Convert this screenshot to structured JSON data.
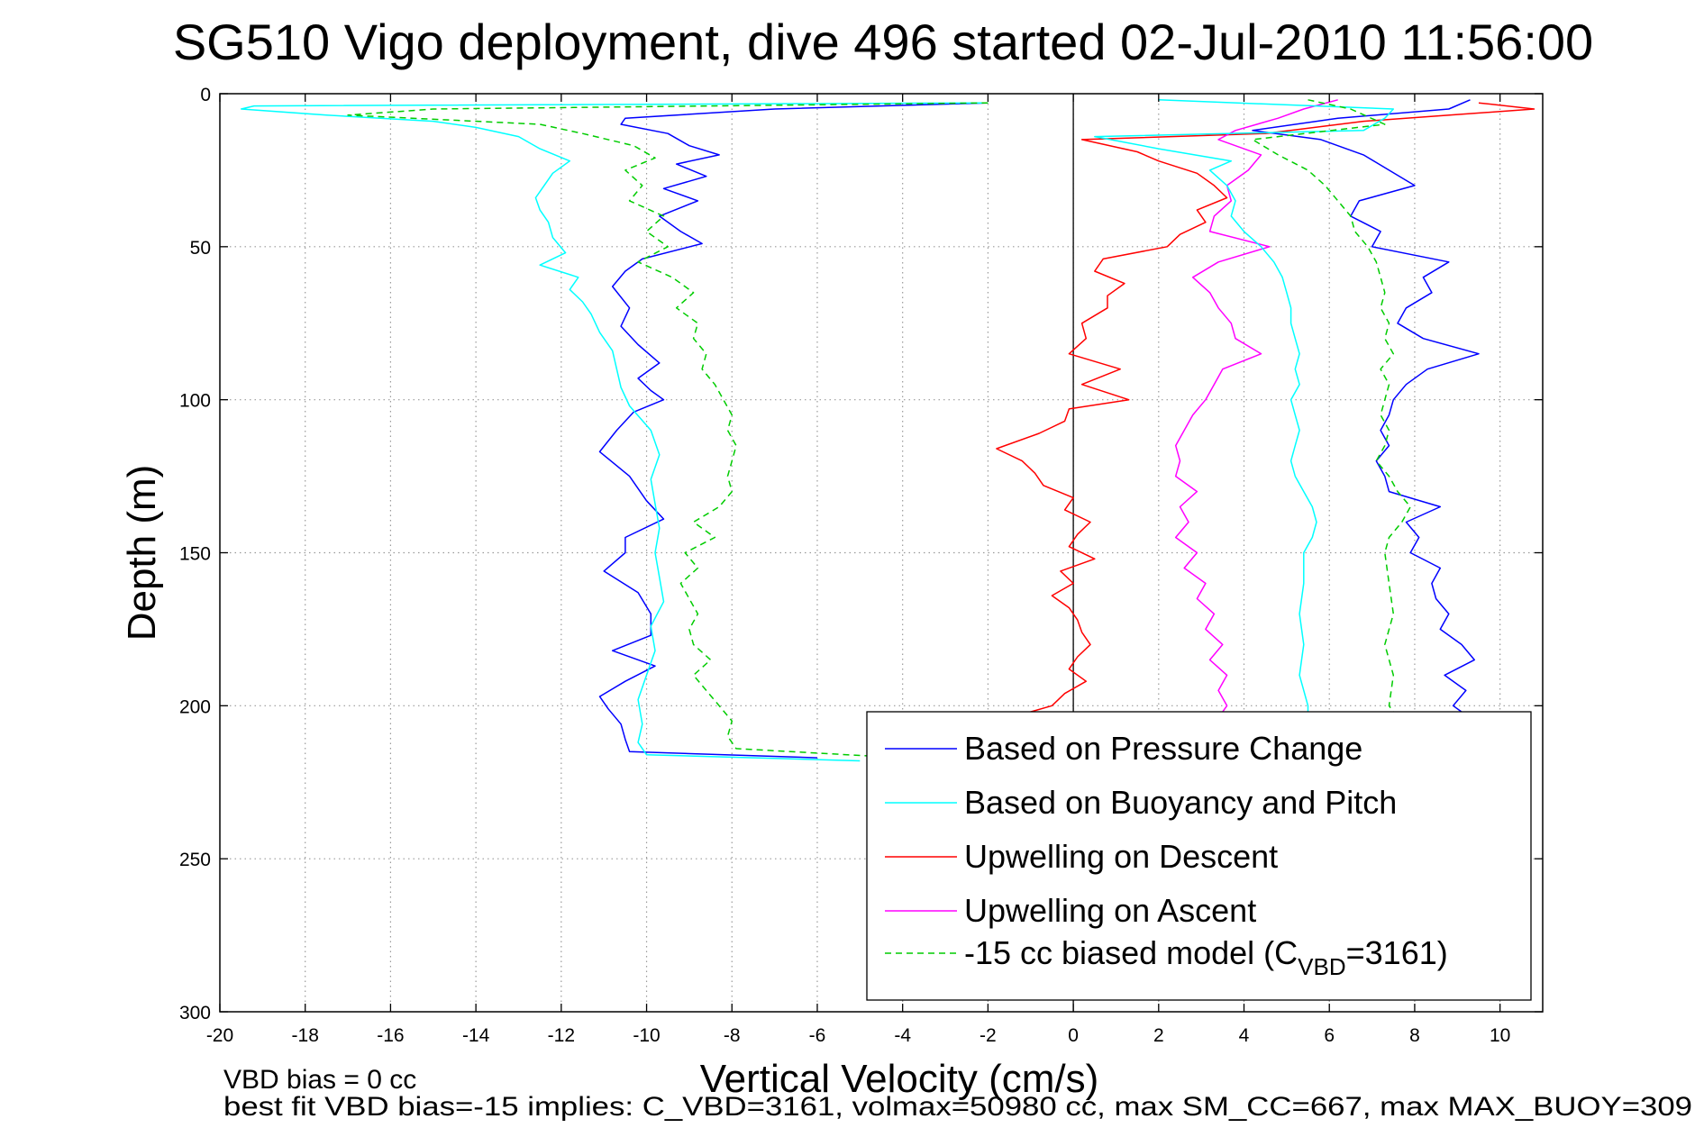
{
  "chart_data": {
    "type": "line",
    "title": "SG510 Vigo deployment, dive 496 started 02-Jul-2010 11:56:00",
    "xlabel": "Vertical Velocity (cm/s)",
    "ylabel": "Depth (m)",
    "xlim": [
      -20,
      11
    ],
    "ylim": [
      0,
      300
    ],
    "y_reversed": true,
    "grid": true,
    "xticks": [
      -20,
      -18,
      -16,
      -14,
      -12,
      -10,
      -8,
      -6,
      -4,
      -2,
      0,
      2,
      4,
      6,
      8,
      10
    ],
    "yticks": [
      0,
      50,
      100,
      150,
      200,
      250,
      300
    ],
    "legend_position": "bottom-right",
    "annotations": [
      "VBD bias = 0 cc",
      "best fit VBD bias=-15 implies: C_VBD=3161, volmax=50980 cc, max SM_CC=667, max MAX_BUOY=309"
    ],
    "series": [
      {
        "name": "Based on Pressure Change",
        "color": "#0000ff",
        "dash": "solid",
        "depth": [
          3,
          5,
          8,
          10,
          13,
          17,
          20,
          23,
          27,
          31,
          35,
          40,
          45,
          49,
          54,
          58,
          63,
          70,
          76,
          82,
          88,
          93,
          97,
          100,
          104,
          110,
          117,
          125,
          133,
          139,
          145,
          150,
          156,
          163,
          170,
          177,
          182,
          187,
          192,
          197,
          201,
          206,
          211,
          215,
          217
        ],
        "velocity": [
          -2,
          -7,
          -10.5,
          -10.6,
          -9.5,
          -9,
          -8.3,
          -9.3,
          -8.6,
          -9.6,
          -8.8,
          -9.7,
          -9.2,
          -8.7,
          -10.1,
          -10.5,
          -10.8,
          -10.4,
          -10.6,
          -10.2,
          -9.7,
          -10.2,
          -9.9,
          -9.6,
          -10.3,
          -10.7,
          -11.1,
          -10.4,
          -10,
          -9.6,
          -10.5,
          -10.5,
          -11,
          -10.2,
          -9.9,
          -9.9,
          -10.8,
          -9.8,
          -10.5,
          -11.1,
          -10.9,
          -10.6,
          -10.5,
          -10.4,
          -6
        ]
      },
      {
        "name": "Based on Buoyancy and Pitch",
        "color": "#00ffff",
        "dash": "solid",
        "depth": [
          3,
          4,
          5,
          7,
          9,
          11,
          14,
          18,
          22,
          26,
          30,
          34,
          38,
          42,
          47,
          52,
          56,
          60,
          64,
          68,
          72,
          78,
          84,
          90,
          96,
          102,
          110,
          118,
          126,
          134,
          142,
          150,
          158,
          166,
          174,
          182,
          190,
          198,
          206,
          212,
          216,
          218
        ],
        "velocity": [
          -2,
          -19.2,
          -19.5,
          -17.5,
          -15,
          -14,
          -13,
          -12.5,
          -11.8,
          -12.2,
          -12.4,
          -12.6,
          -12.5,
          -12.3,
          -12.2,
          -11.9,
          -12.5,
          -11.6,
          -11.8,
          -11.5,
          -11.3,
          -11.1,
          -10.8,
          -10.7,
          -10.6,
          -10.4,
          -9.9,
          -9.7,
          -9.9,
          -9.8,
          -9.7,
          -9.8,
          -9.7,
          -9.6,
          -9.9,
          -9.8,
          -10,
          -10.2,
          -10.1,
          -10.2,
          -10,
          -5
        ]
      },
      {
        "name": "Upwelling on Descent",
        "color": "#ff0000",
        "dash": "solid",
        "depth": [
          3,
          5,
          9,
          13,
          15,
          19,
          22,
          26,
          30,
          34,
          38,
          42,
          46,
          50,
          54,
          58,
          62,
          66,
          70,
          75,
          80,
          85,
          90,
          95,
          100,
          103,
          107,
          111,
          116,
          120,
          124,
          128,
          132,
          136,
          140,
          144,
          148,
          152,
          156,
          160,
          164,
          168,
          172,
          176,
          180,
          184,
          188,
          192,
          196,
          200,
          202
        ],
        "velocity": [
          9.5,
          10.8,
          6.8,
          4.5,
          0.2,
          1.5,
          2,
          2.9,
          3.3,
          3.6,
          2.9,
          3.1,
          2.5,
          2.2,
          0.7,
          0.5,
          1.2,
          0.8,
          0.8,
          0.2,
          0.3,
          -0.1,
          1.1,
          0.2,
          1.3,
          -0.1,
          -0.2,
          -0.8,
          -1.8,
          -1.2,
          -0.9,
          -0.7,
          0,
          -0.2,
          0.4,
          0.1,
          -0.1,
          0.5,
          -0.3,
          0,
          -0.5,
          -0.1,
          0.1,
          0.2,
          0.4,
          0.1,
          -0.1,
          0.3,
          -0.2,
          -0.5,
          -1
        ]
      },
      {
        "name": "Upwelling on Ascent",
        "color": "#ff00ff",
        "dash": "solid",
        "depth": [
          2,
          5,
          8,
          12,
          15,
          20,
          25,
          30,
          35,
          40,
          45,
          50,
          55,
          60,
          65,
          70,
          75,
          80,
          85,
          90,
          95,
          100,
          105,
          110,
          115,
          120,
          125,
          130,
          135,
          140,
          145,
          150,
          155,
          160,
          165,
          170,
          175,
          180,
          185,
          190,
          195,
          200,
          202
        ],
        "velocity": [
          6.2,
          5.4,
          4.8,
          3.8,
          3.4,
          4.4,
          4.1,
          3.6,
          3.7,
          3.3,
          3.2,
          4.6,
          3.4,
          2.8,
          3.2,
          3.4,
          3.7,
          3.8,
          4.4,
          3.5,
          3.3,
          3.1,
          2.8,
          2.6,
          2.4,
          2.5,
          2.4,
          2.9,
          2.5,
          2.7,
          2.4,
          2.9,
          2.6,
          3.1,
          2.9,
          3.3,
          3.1,
          3.5,
          3.2,
          3.6,
          3.4,
          3.6,
          3.5
        ]
      },
      {
        "name": "-15 cc biased model (C_VBD=3161)",
        "legend_main": "-15 cc biased model (C",
        "legend_sub": "VBD",
        "legend_tail": "=3161)",
        "color": "#00cc00",
        "dash": "dashed",
        "depth": [
          3,
          5,
          7,
          10,
          13,
          17,
          21,
          25,
          30,
          35,
          40,
          45,
          50,
          55,
          60,
          65,
          70,
          75,
          80,
          85,
          90,
          95,
          100,
          105,
          110,
          115,
          120,
          125,
          130,
          135,
          140,
          145,
          150,
          155,
          160,
          165,
          170,
          175,
          180,
          185,
          190,
          195,
          200,
          205,
          210,
          214,
          217
        ],
        "velocity": [
          -2,
          -15,
          -17,
          -12.5,
          -11.5,
          -10.3,
          -9.8,
          -10.5,
          -10.1,
          -10.4,
          -9.6,
          -10,
          -9.5,
          -10.2,
          -9.4,
          -8.9,
          -9.3,
          -8.8,
          -8.9,
          -8.6,
          -8.7,
          -8.4,
          -8.2,
          -8,
          -8.1,
          -7.9,
          -8,
          -8.1,
          -8,
          -8.3,
          -8.9,
          -8.4,
          -9.1,
          -8.8,
          -9.2,
          -9,
          -8.8,
          -9,
          -8.9,
          -8.5,
          -8.9,
          -8.6,
          -8.3,
          -8,
          -8.1,
          -7.9,
          -4
        ]
      },
      {
        "name": "Based on Pressure Change (ascent)",
        "in_legend": false,
        "color": "#0000ff",
        "dash": "solid",
        "depth": [
          2,
          5,
          8,
          12,
          15,
          20,
          25,
          30,
          35,
          40,
          45,
          50,
          55,
          60,
          65,
          70,
          75,
          80,
          85,
          90,
          95,
          100,
          105,
          110,
          115,
          120,
          125,
          130,
          135,
          140,
          145,
          150,
          155,
          160,
          165,
          170,
          175,
          180,
          185,
          190,
          195,
          200,
          202
        ],
        "velocity": [
          9.3,
          8.8,
          6.2,
          4.2,
          5.8,
          6.8,
          7.4,
          8,
          6.7,
          6.5,
          7.2,
          7,
          8.8,
          8.2,
          8.4,
          7.8,
          7.6,
          8.2,
          9.5,
          8.3,
          7.8,
          7.5,
          7.4,
          7.2,
          7.4,
          7.1,
          7.3,
          7.4,
          8.6,
          7.8,
          8.1,
          7.9,
          8.6,
          8.4,
          8.5,
          8.8,
          8.6,
          9.1,
          9.4,
          8.7,
          9.2,
          8.9,
          9.1
        ]
      },
      {
        "name": "Based on Buoyancy and Pitch (ascent)",
        "in_legend": false,
        "color": "#00ffff",
        "dash": "solid",
        "depth": [
          2,
          5,
          8,
          12,
          14,
          18,
          22,
          25,
          30,
          35,
          40,
          45,
          50,
          55,
          60,
          65,
          70,
          75,
          80,
          85,
          90,
          95,
          100,
          105,
          110,
          115,
          120,
          125,
          130,
          135,
          140,
          145,
          150,
          160,
          170,
          180,
          190,
          200,
          202
        ],
        "velocity": [
          2,
          7.5,
          7.3,
          6.8,
          0.5,
          2,
          3.7,
          3.2,
          3.6,
          3.8,
          3.7,
          4,
          4.4,
          4.7,
          4.9,
          5,
          5.1,
          5.1,
          5.2,
          5.3,
          5.2,
          5.3,
          5.1,
          5.2,
          5.3,
          5.2,
          5.1,
          5.2,
          5.4,
          5.6,
          5.7,
          5.6,
          5.4,
          5.4,
          5.3,
          5.4,
          5.3,
          5.5,
          5.5
        ]
      },
      {
        "name": "-15 cc biased model (ascent)",
        "in_legend": false,
        "color": "#00cc00",
        "dash": "dashed",
        "depth": [
          2,
          5,
          10,
          15,
          20,
          25,
          30,
          35,
          40,
          45,
          50,
          55,
          60,
          65,
          70,
          75,
          80,
          85,
          90,
          95,
          100,
          105,
          110,
          115,
          120,
          125,
          130,
          135,
          140,
          145,
          150,
          160,
          170,
          180,
          190,
          200,
          202
        ],
        "velocity": [
          5.5,
          6.5,
          7.3,
          4.2,
          4.8,
          5.5,
          5.9,
          6.2,
          6.5,
          6.6,
          6.9,
          7.1,
          7.2,
          7.3,
          7.2,
          7.4,
          7.3,
          7.5,
          7.2,
          7.4,
          7.3,
          7.2,
          7.4,
          7.3,
          7.1,
          7.4,
          7.6,
          7.9,
          7.7,
          7.4,
          7.3,
          7.4,
          7.5,
          7.3,
          7.5,
          7.4,
          7.5
        ]
      }
    ]
  }
}
